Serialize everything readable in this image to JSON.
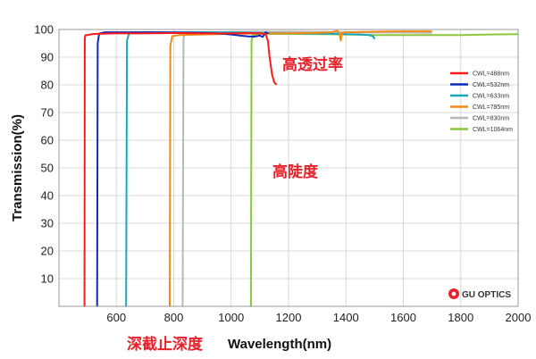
{
  "chart_data": {
    "type": "line",
    "xlabel_main": "Wavelength",
    "xlabel_unit": "(nm)",
    "ylabel": "Transmission(%)",
    "xlim": [
      400,
      2000
    ],
    "ylim": [
      0,
      100
    ],
    "x_ticks": [
      600,
      800,
      1000,
      1200,
      1400,
      1600,
      1800,
      2000
    ],
    "y_ticks": [
      10,
      20,
      30,
      40,
      50,
      60,
      70,
      80,
      90,
      100
    ],
    "grid": true,
    "legend_position": "top-right",
    "series": [
      {
        "name": "CWL=488nm",
        "color": "#ff1a1a",
        "points": [
          [
            488,
            0
          ],
          [
            489,
            0
          ],
          [
            490,
            97
          ],
          [
            493,
            98
          ],
          [
            500,
            98
          ],
          [
            520,
            98.4
          ],
          [
            600,
            98.6
          ],
          [
            700,
            98.6
          ],
          [
            800,
            98.7
          ],
          [
            900,
            98.6
          ],
          [
            1000,
            98.6
          ],
          [
            1050,
            98.7
          ],
          [
            1100,
            98.6
          ],
          [
            1120,
            98.4
          ],
          [
            1128,
            96
          ],
          [
            1134,
            90
          ],
          [
            1142,
            84
          ],
          [
            1150,
            81
          ],
          [
            1158,
            80
          ]
        ]
      },
      {
        "name": "CWL=532nm",
        "color": "#0f2ab8",
        "points": [
          [
            532,
            0
          ],
          [
            533,
            0
          ],
          [
            535,
            95
          ],
          [
            540,
            98.5
          ],
          [
            560,
            99
          ],
          [
            600,
            99
          ],
          [
            700,
            99
          ],
          [
            800,
            98.9
          ],
          [
            900,
            98.8
          ],
          [
            950,
            98.6
          ],
          [
            1000,
            98.2
          ],
          [
            1030,
            97.8
          ],
          [
            1060,
            97.5
          ],
          [
            1080,
            97.4
          ],
          [
            1100,
            97.8
          ],
          [
            1110,
            97.3
          ],
          [
            1120,
            99
          ],
          [
            1130,
            98.5
          ]
        ]
      },
      {
        "name": "CWL=633nm",
        "color": "#1aa8b8",
        "points": [
          [
            633,
            0
          ],
          [
            634,
            0
          ],
          [
            637,
            96
          ],
          [
            645,
            98.8
          ],
          [
            700,
            99
          ],
          [
            800,
            99
          ],
          [
            900,
            99
          ],
          [
            1000,
            99
          ],
          [
            1100,
            98.8
          ],
          [
            1200,
            98.6
          ],
          [
            1300,
            98.5
          ],
          [
            1400,
            98.3
          ],
          [
            1450,
            98.2
          ],
          [
            1480,
            98
          ],
          [
            1495,
            97.5
          ],
          [
            1500,
            96.5
          ]
        ]
      },
      {
        "name": "CWL=785nm",
        "color": "#f28a1a",
        "points": [
          [
            785,
            0
          ],
          [
            786,
            0
          ],
          [
            788,
            94
          ],
          [
            795,
            97.6
          ],
          [
            820,
            98
          ],
          [
            900,
            98.2
          ],
          [
            1000,
            98.4
          ],
          [
            1100,
            98.6
          ],
          [
            1200,
            98.6
          ],
          [
            1300,
            98.8
          ],
          [
            1350,
            99
          ],
          [
            1370,
            99.5
          ],
          [
            1378,
            98.5
          ],
          [
            1382,
            96
          ],
          [
            1386,
            98.7
          ],
          [
            1400,
            99
          ],
          [
            1500,
            99.2
          ],
          [
            1600,
            99.3
          ],
          [
            1700,
            99.3
          ]
        ]
      },
      {
        "name": "CWL=830nm",
        "color": "#b8b8b8",
        "points": [
          [
            830,
            0
          ],
          [
            831,
            0
          ],
          [
            834,
            97
          ],
          [
            840,
            98.8
          ],
          [
            900,
            99
          ],
          [
            1000,
            99.1
          ],
          [
            1100,
            99.2
          ],
          [
            1200,
            99.2
          ],
          [
            1300,
            99.1
          ],
          [
            1400,
            99
          ],
          [
            1500,
            98.9
          ],
          [
            1600,
            98.9
          ],
          [
            1700,
            98.8
          ]
        ]
      },
      {
        "name": "CWL=1064nm",
        "color": "#8cc63e",
        "points": [
          [
            1068,
            0
          ],
          [
            1069,
            0
          ],
          [
            1071,
            96
          ],
          [
            1076,
            98
          ],
          [
            1100,
            98.4
          ],
          [
            1200,
            98.4
          ],
          [
            1300,
            98.3
          ],
          [
            1400,
            98.2
          ],
          [
            1500,
            98
          ],
          [
            1600,
            98
          ],
          [
            1700,
            98
          ],
          [
            1800,
            98
          ],
          [
            1900,
            98.2
          ],
          [
            2000,
            98.3
          ]
        ]
      }
    ],
    "annotations": [
      "高透过率",
      "高陡度",
      "深截止深度"
    ],
    "brand": "GU OPTICS"
  }
}
